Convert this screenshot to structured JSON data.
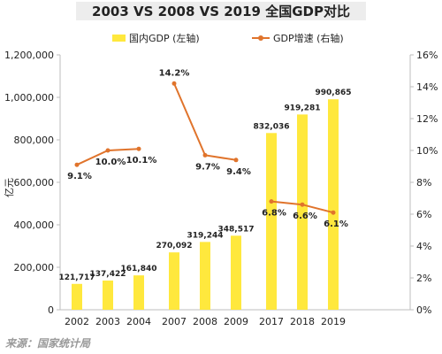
{
  "chart_data": {
    "type": "bar+line",
    "title": "2003 VS 2008 VS 2019 全国GDP对比",
    "source": "来源：国家统计局",
    "ylabel_left": "亿元",
    "legend": {
      "bar_label": "国内GDP (左轴)",
      "line_label": "GDP增速 (右轴)",
      "placement": "top"
    },
    "categories": [
      "2002",
      "2003",
      "2004",
      "2007",
      "2008",
      "2009",
      "2017",
      "2018",
      "2019"
    ],
    "groups": [
      [
        0,
        1,
        2
      ],
      [
        3,
        4,
        5
      ],
      [
        6,
        7,
        8
      ]
    ],
    "series": [
      {
        "name": "国内GDP (左轴)",
        "type": "bar",
        "axis": "left",
        "values": [
          121717,
          137422,
          161840,
          270092,
          319244,
          348517,
          832036,
          919281,
          990865
        ],
        "labels": [
          "121,717",
          "137,422",
          "161,840",
          "270,092",
          "319,244",
          "348,517",
          "832,036",
          "919,281",
          "990,865"
        ]
      },
      {
        "name": "GDP增速 (右轴)",
        "type": "line",
        "axis": "right",
        "values": [
          9.1,
          10.0,
          10.1,
          14.2,
          9.7,
          9.4,
          6.8,
          6.6,
          6.1
        ],
        "labels": [
          "9.1%",
          "10.0%",
          "10.1%",
          "14.2%",
          "9.7%",
          "9.4%",
          "6.8%",
          "6.6%",
          "6.1%"
        ]
      }
    ],
    "y_left": {
      "range": [
        0,
        1200000
      ],
      "ticks": [
        0,
        200000,
        400000,
        600000,
        800000,
        1000000,
        1200000
      ],
      "tick_labels": [
        "0",
        "200,000",
        "400,000",
        "600,000",
        "800,000",
        "1,000,000",
        "1,200,000"
      ]
    },
    "y_right": {
      "range": [
        0,
        16
      ],
      "ticks": [
        0,
        2,
        4,
        6,
        8,
        10,
        12,
        14,
        16
      ],
      "tick_labels": [
        "0%",
        "2%",
        "4%",
        "6%",
        "8%",
        "10%",
        "12%",
        "14%",
        "16%"
      ]
    },
    "grid": false,
    "colors": {
      "bar": "#FFE83D",
      "line": "#E0742C",
      "title_bg": "#EDEDED",
      "axis": "#BDBDBD",
      "text": "#222222",
      "source_text": "#999999"
    }
  }
}
